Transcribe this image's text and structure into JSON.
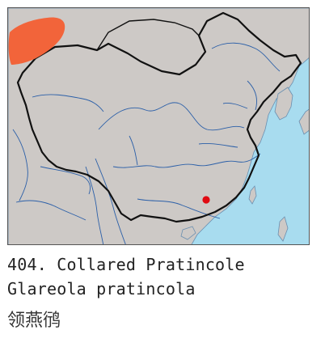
{
  "species": {
    "number_and_common_name": "404. Collared Pratincole",
    "scientific_name": "Glareola pratincola",
    "chinese_name": "领燕鸻"
  },
  "map": {
    "colors": {
      "sea": "#a8dcef",
      "land": "#cdc9c6",
      "border": "#111111",
      "river": "#2b5fa8",
      "range": "#f2643a",
      "record": "#e00a12"
    },
    "layers": [
      "sea",
      "land",
      "rivers",
      "national-border",
      "breeding-range",
      "record-point"
    ]
  }
}
